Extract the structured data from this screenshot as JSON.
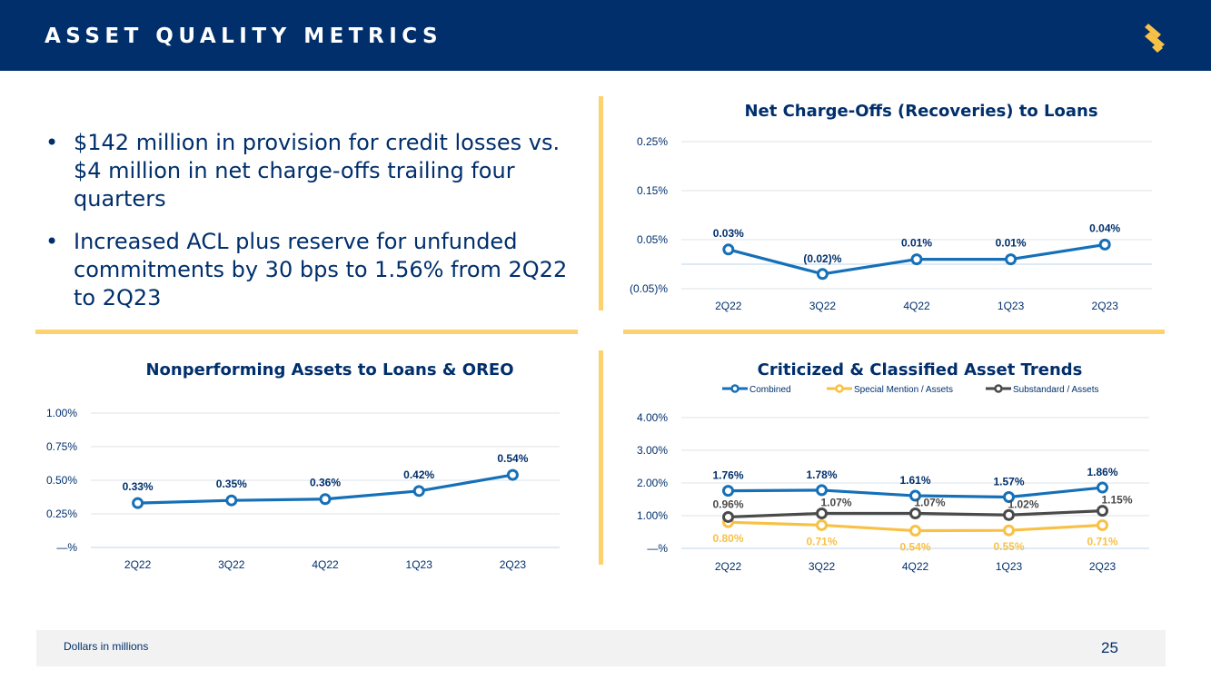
{
  "header": {
    "title": "ASSET QUALITY METRICS",
    "logo_icon": "brand-s-logo"
  },
  "colors": {
    "navy": "#002f6c",
    "gold": "#fdd26e",
    "blue": "#1570b8",
    "yellow": "#f8c146",
    "gray": "#4a4a4a"
  },
  "bullets": [
    {
      "symbol": "•",
      "text": "$142 million in provision for credit losses vs. $4 million in net charge-offs trailing four quarters"
    },
    {
      "symbol": "•",
      "text": "Increased ACL plus reserve for unfunded commitments by 30 bps to 1.56% from 2Q22 to 2Q23"
    }
  ],
  "footer": {
    "note": "Dollars in millions",
    "page_number": "25"
  },
  "chart_data": [
    {
      "id": "nco",
      "type": "line",
      "title": "Net Charge-Offs (Recoveries) to Loans",
      "categories": [
        "2Q22",
        "3Q22",
        "4Q22",
        "1Q23",
        "2Q23"
      ],
      "ylim": [
        -0.05,
        0.25
      ],
      "yticks": [
        -0.05,
        0.05,
        0.15,
        0.25
      ],
      "ytick_labels": [
        "(0.05)%",
        "0.05%",
        "0.15%",
        "0.25%"
      ],
      "series": [
        {
          "name": "Net Charge-Offs",
          "color": "#1570b8",
          "values": [
            0.03,
            -0.02,
            0.01,
            0.01,
            0.04
          ],
          "labels": [
            "0.03%",
            "(0.02)%",
            "0.01%",
            "0.01%",
            "0.04%"
          ],
          "label_color": "#002f6c"
        }
      ]
    },
    {
      "id": "npa",
      "type": "line",
      "title": "Nonperforming Assets to Loans & OREO",
      "categories": [
        "2Q22",
        "3Q22",
        "4Q22",
        "1Q23",
        "2Q23"
      ],
      "ylim": [
        0,
        1.0
      ],
      "yticks": [
        0,
        0.25,
        0.5,
        0.75,
        1.0
      ],
      "ytick_labels": [
        "—%",
        "0.25%",
        "0.50%",
        "0.75%",
        "1.00%"
      ],
      "series": [
        {
          "name": "NPA",
          "color": "#1570b8",
          "values": [
            0.33,
            0.35,
            0.36,
            0.42,
            0.54
          ],
          "labels": [
            "0.33%",
            "0.35%",
            "0.36%",
            "0.42%",
            "0.54%"
          ],
          "label_color": "#002f6c"
        }
      ]
    },
    {
      "id": "cc",
      "type": "line",
      "title": "Criticized & Classified Asset Trends",
      "categories": [
        "2Q22",
        "3Q22",
        "4Q22",
        "1Q23",
        "2Q23"
      ],
      "ylim": [
        0,
        4.0
      ],
      "yticks": [
        0,
        1,
        2,
        3,
        4
      ],
      "ytick_labels": [
        "—%",
        "1.00%",
        "2.00%",
        "3.00%",
        "4.00%"
      ],
      "legend": "top",
      "series": [
        {
          "name": "Combined",
          "color": "#1570b8",
          "values": [
            1.76,
            1.78,
            1.61,
            1.57,
            1.86
          ],
          "labels": [
            "1.76%",
            "1.78%",
            "1.61%",
            "1.57%",
            "1.86%"
          ],
          "label_color": "#002f6c"
        },
        {
          "name": "Special Mention / Assets",
          "color": "#f8c146",
          "values": [
            0.8,
            0.71,
            0.54,
            0.55,
            0.71
          ],
          "labels": [
            "0.80%",
            "0.71%",
            "0.54%",
            "0.55%",
            "0.71%"
          ],
          "label_color": "#f8c146"
        },
        {
          "name": "Substandard / Assets",
          "color": "#4a4a4a",
          "values": [
            0.96,
            1.07,
            1.07,
            1.02,
            1.15
          ],
          "labels": [
            "0.96%",
            "1.07%",
            "1.07%",
            "1.02%",
            "1.15%"
          ],
          "label_color": "#4a4a4a"
        }
      ]
    }
  ]
}
